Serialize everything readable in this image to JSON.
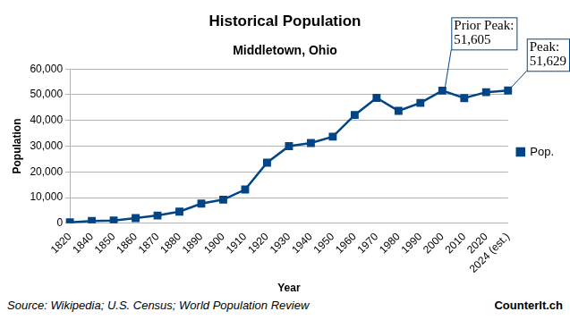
{
  "chart_data": {
    "type": "line",
    "title": "Historical Population",
    "subtitle": "Middletown, Ohio",
    "x_label": "Year",
    "y_label": "Population",
    "categories": [
      "1820",
      "1840",
      "1850",
      "1860",
      "1870",
      "1880",
      "1890",
      "1900",
      "1910",
      "1920",
      "1930",
      "1940",
      "1950",
      "1960",
      "1970",
      "1980",
      "1990",
      "2000",
      "2010",
      "2020",
      "2024 (est.)"
    ],
    "series": [
      {
        "name": "Pop.",
        "color": "#004586",
        "marker": "square",
        "line_style": "solid",
        "values": [
          400,
          900,
          1100,
          2052,
          3046,
          4538,
          7681,
          9215,
          13152,
          23594,
          29992,
          31220,
          33695,
          42115,
          48767,
          43719,
          46800,
          51605,
          48694,
          50987,
          51629
        ]
      }
    ],
    "ylim": [
      0,
      60000
    ],
    "yticks": [
      0,
      {
        "value": 10000,
        "label": "10,000"
      },
      {
        "value": 20000,
        "label": "20,000"
      },
      {
        "value": 30000,
        "label": "30,000"
      },
      {
        "value": 40000,
        "label": "40,000"
      },
      {
        "value": 50000,
        "label": "50,000"
      },
      {
        "value": 60000,
        "label": "60,000"
      }
    ],
    "grid": true,
    "legend": "right",
    "annotations": [
      {
        "category": "2000",
        "text": "Prior Peak:\n51,605"
      },
      {
        "category": "2024 (est.)",
        "text": "Peak:\n51,629"
      }
    ],
    "source": "Source: Wikipedia; U.S. Census; World Population Review",
    "credit": "CounterIt.ch"
  }
}
